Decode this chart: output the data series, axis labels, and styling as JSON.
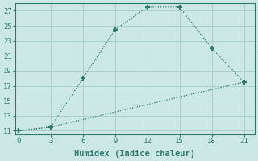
{
  "xlabel": "Humidex (Indice chaleur)",
  "line1_x": [
    0,
    3,
    6,
    9,
    12,
    15,
    18,
    21
  ],
  "line1_y": [
    11,
    11.5,
    18,
    24.5,
    27.5,
    27.5,
    22,
    17.5
  ],
  "line2_x": [
    0,
    3,
    21
  ],
  "line2_y": [
    11,
    11.5,
    17.5
  ],
  "line_color": "#2e7b6e",
  "marker": "+",
  "marker_size": 5,
  "marker_mew": 1.5,
  "bg_color": "#cce8e5",
  "grid_color": "#aacfcc",
  "xlim": [
    -0.3,
    22
  ],
  "ylim": [
    10.5,
    28
  ],
  "xticks": [
    0,
    3,
    6,
    9,
    12,
    15,
    18,
    21
  ],
  "yticks": [
    11,
    13,
    15,
    17,
    19,
    21,
    23,
    25,
    27
  ],
  "tick_fontsize": 6.5,
  "xlabel_fontsize": 7.5,
  "linewidth": 0.9
}
